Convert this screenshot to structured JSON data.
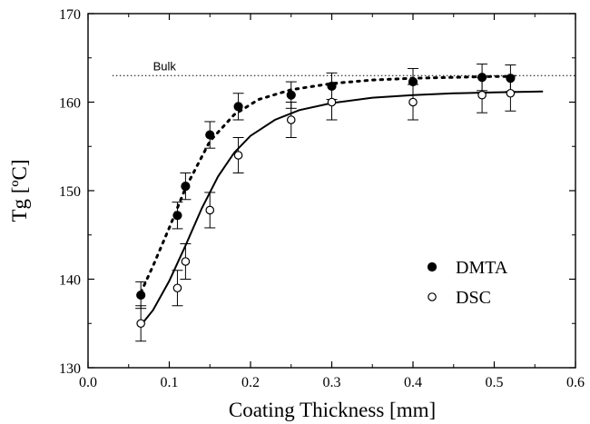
{
  "chart_data": {
    "type": "scatter",
    "xlabel": "Coating Thickness [mm]",
    "ylabel": "Tg [ºC]",
    "xlim": [
      0.0,
      0.6
    ],
    "ylim": [
      130,
      170
    ],
    "x_ticks": [
      "0.0",
      "0.1",
      "0.2",
      "0.3",
      "0.4",
      "0.5",
      "0.6"
    ],
    "y_ticks": [
      "130",
      "140",
      "150",
      "160",
      "170"
    ],
    "x_tick_values": [
      0.0,
      0.1,
      0.2,
      0.3,
      0.4,
      0.5,
      0.6
    ],
    "y_tick_values": [
      130,
      140,
      150,
      160,
      170
    ],
    "grid": false,
    "legend_position": "lower-right",
    "annotation": {
      "text": "Bulk",
      "y": 163
    },
    "series": [
      {
        "name": "DMTA",
        "marker": "filled-circle",
        "fit_line": "dotted",
        "points": [
          {
            "x": 0.065,
            "y": 138.2,
            "err": 1.5
          },
          {
            "x": 0.11,
            "y": 147.2,
            "err": 1.5
          },
          {
            "x": 0.12,
            "y": 150.5,
            "err": 1.5
          },
          {
            "x": 0.15,
            "y": 156.3,
            "err": 1.5
          },
          {
            "x": 0.185,
            "y": 159.5,
            "err": 1.5
          },
          {
            "x": 0.25,
            "y": 160.8,
            "err": 1.5
          },
          {
            "x": 0.3,
            "y": 161.8,
            "err": 1.5
          },
          {
            "x": 0.4,
            "y": 162.3,
            "err": 1.5
          },
          {
            "x": 0.485,
            "y": 162.8,
            "err": 1.5
          },
          {
            "x": 0.52,
            "y": 162.7,
            "err": 1.5
          }
        ],
        "fit": [
          {
            "x": 0.065,
            "y": 138.5
          },
          {
            "x": 0.08,
            "y": 141.5
          },
          {
            "x": 0.1,
            "y": 145.8
          },
          {
            "x": 0.12,
            "y": 150.3
          },
          {
            "x": 0.15,
            "y": 155.6
          },
          {
            "x": 0.18,
            "y": 158.6
          },
          {
            "x": 0.21,
            "y": 160.3
          },
          {
            "x": 0.25,
            "y": 161.4
          },
          {
            "x": 0.3,
            "y": 162.1
          },
          {
            "x": 0.35,
            "y": 162.5
          },
          {
            "x": 0.4,
            "y": 162.7
          },
          {
            "x": 0.45,
            "y": 162.8
          },
          {
            "x": 0.5,
            "y": 162.9
          },
          {
            "x": 0.53,
            "y": 162.9
          }
        ]
      },
      {
        "name": "DSC",
        "marker": "open-circle",
        "fit_line": "solid",
        "points": [
          {
            "x": 0.065,
            "y": 135.0,
            "err": 2.0
          },
          {
            "x": 0.11,
            "y": 139.0,
            "err": 2.0
          },
          {
            "x": 0.12,
            "y": 142.0,
            "err": 2.0
          },
          {
            "x": 0.15,
            "y": 147.8,
            "err": 2.0
          },
          {
            "x": 0.185,
            "y": 154.0,
            "err": 2.0
          },
          {
            "x": 0.25,
            "y": 158.0,
            "err": 2.0
          },
          {
            "x": 0.3,
            "y": 160.0,
            "err": 2.0
          },
          {
            "x": 0.4,
            "y": 160.0,
            "err": 2.0
          },
          {
            "x": 0.485,
            "y": 160.8,
            "err": 2.0
          },
          {
            "x": 0.52,
            "y": 161.0,
            "err": 2.0
          }
        ],
        "fit": [
          {
            "x": 0.065,
            "y": 134.8
          },
          {
            "x": 0.08,
            "y": 136.5
          },
          {
            "x": 0.1,
            "y": 139.8
          },
          {
            "x": 0.12,
            "y": 143.8
          },
          {
            "x": 0.14,
            "y": 148.0
          },
          {
            "x": 0.16,
            "y": 151.6
          },
          {
            "x": 0.18,
            "y": 154.3
          },
          {
            "x": 0.2,
            "y": 156.2
          },
          {
            "x": 0.23,
            "y": 158.0
          },
          {
            "x": 0.26,
            "y": 159.1
          },
          {
            "x": 0.3,
            "y": 159.9
          },
          {
            "x": 0.35,
            "y": 160.5
          },
          {
            "x": 0.4,
            "y": 160.8
          },
          {
            "x": 0.45,
            "y": 161.0
          },
          {
            "x": 0.5,
            "y": 161.1
          },
          {
            "x": 0.56,
            "y": 161.2
          }
        ]
      }
    ]
  }
}
